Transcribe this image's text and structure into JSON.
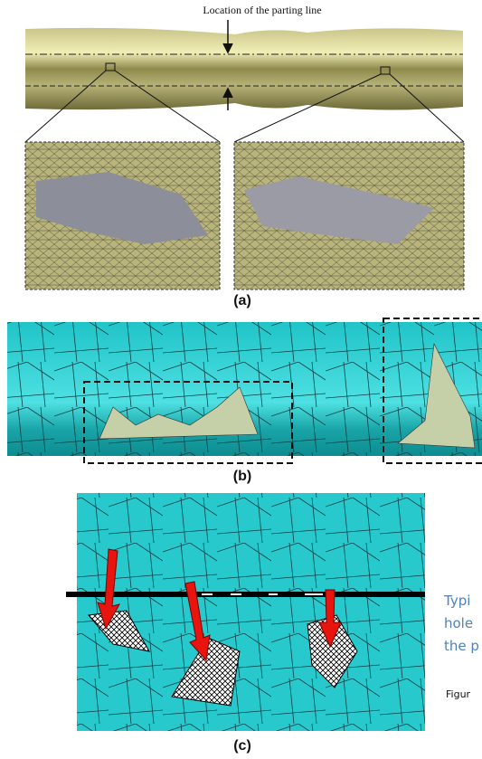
{
  "figure": {
    "panel_a": {
      "annotation": "Location of the parting line",
      "label": "(a)"
    },
    "panel_b": {
      "label": "(b)"
    },
    "panel_c": {
      "label": "(c)"
    }
  },
  "side_text": {
    "lines": [
      "Typi",
      "hole",
      "the p"
    ],
    "caption": "Figur"
  }
}
